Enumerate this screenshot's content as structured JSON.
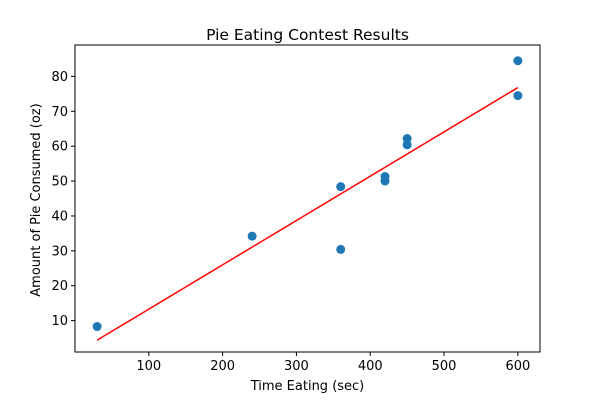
{
  "chart_data": {
    "type": "scatter",
    "title": "Pie Eating Contest Results",
    "xlabel": "Time Eating (sec)",
    "ylabel": "Amount of Pie Consumed (oz)",
    "xlim": [
      0,
      630
    ],
    "ylim": [
      1,
      89
    ],
    "xticks": [
      100,
      200,
      300,
      400,
      500,
      600
    ],
    "yticks": [
      10,
      20,
      30,
      40,
      50,
      60,
      70,
      80
    ],
    "grid": false,
    "points": [
      {
        "x": 30,
        "y": 8.3
      },
      {
        "x": 240,
        "y": 34.2
      },
      {
        "x": 360,
        "y": 48.4
      },
      {
        "x": 360,
        "y": 30.4
      },
      {
        "x": 420,
        "y": 51.3
      },
      {
        "x": 420,
        "y": 50.0
      },
      {
        "x": 450,
        "y": 62.2
      },
      {
        "x": 450,
        "y": 60.4
      },
      {
        "x": 600,
        "y": 84.5
      },
      {
        "x": 600,
        "y": 74.5
      }
    ],
    "fit_line": {
      "x": [
        30,
        600
      ],
      "y": [
        4.4,
        76.8
      ]
    },
    "colors": {
      "points": "#1f77b4",
      "fit_line": "#ff0000"
    }
  }
}
